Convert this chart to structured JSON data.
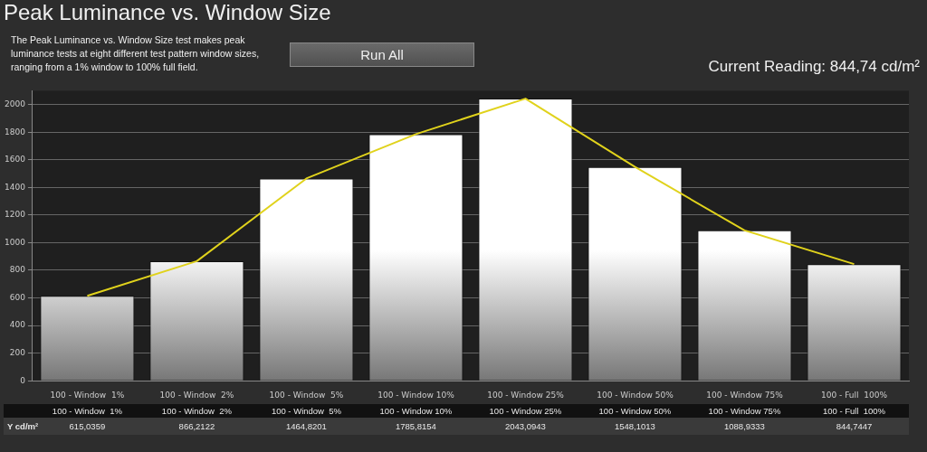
{
  "chart_data": {
    "type": "bar",
    "title": "Peak Luminance vs. Window Size",
    "subtitle": "The Peak Luminance vs. Window Size test makes peak luminance tests at eight different test pattern window sizes, ranging from a 1% window to 100% full field.",
    "annotations": [
      "Run All",
      "Current Reading: 844,74 cd/m²"
    ],
    "categories": [
      "100 - Window  1%",
      "100 - Window  2%",
      "100 - Window  5%",
      "100 - Window 10%",
      "100 - Window 25%",
      "100 - Window 50%",
      "100 - Window 75%",
      "100 - Full  100%"
    ],
    "series": [
      {
        "name": "Y cd/m²",
        "color": "#ffffff",
        "values": [
          615.0359,
          866.2122,
          1464.8201,
          1785.8154,
          2043.0943,
          1548.1013,
          1088.9333,
          844.7447
        ],
        "value_labels": [
          "615,0359",
          "866,2122",
          "1464,8201",
          "1785,8154",
          "2043,0943",
          "1548,1013",
          "1088,9333",
          "844,7447"
        ]
      },
      {
        "type": "line",
        "color": "#e0d21c",
        "values": [
          615.0359,
          866.2122,
          1464.8201,
          1785.8154,
          2043.0943,
          1548.1013,
          1088.9333,
          844.7447
        ]
      }
    ],
    "ylim": [
      0,
      2100
    ],
    "yticks": [
      0,
      200,
      400,
      600,
      800,
      1000,
      1200,
      1400,
      1600,
      1800,
      2000
    ],
    "grid": "y",
    "marker": "none",
    "legend": false
  }
}
